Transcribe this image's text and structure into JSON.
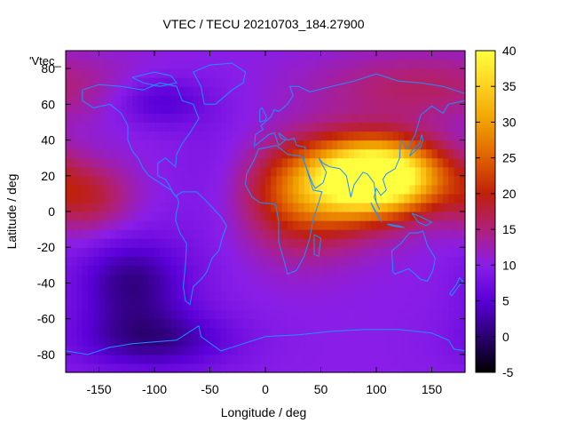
{
  "chart_data": {
    "type": "heatmap",
    "title": "VTEC / TECU 20210703_184.27900",
    "xlabel": "Longitude / deg",
    "ylabel": "Latitude / deg",
    "legend_key": "'Vtec_",
    "xlim": [
      -180,
      180
    ],
    "ylim": [
      -90,
      90
    ],
    "clim": [
      -5,
      40
    ],
    "x_ticks": [
      -150,
      -100,
      -50,
      0,
      50,
      100,
      150
    ],
    "y_ticks": [
      -80,
      -60,
      -40,
      -20,
      0,
      20,
      40,
      60,
      80
    ],
    "colorbar_ticks": [
      -5,
      0,
      5,
      10,
      15,
      20,
      25,
      30,
      35,
      40
    ],
    "colormap": [
      "#000000",
      "#2a0070",
      "#5a00d8",
      "#8a1ee8",
      "#b0207a",
      "#c0200a",
      "#e06000",
      "#f0a000",
      "#ffd020",
      "#ffff40"
    ],
    "coastline_color": "#1e90ff",
    "grid_step_deg": 5,
    "features": [
      {
        "lon": 105,
        "lat": 20,
        "value": 34,
        "sigma_lon": 38,
        "sigma_lat": 14
      },
      {
        "lon": 60,
        "lat": 15,
        "value": 12,
        "sigma_lon": 45,
        "sigma_lat": 18
      },
      {
        "lon": 30,
        "lat": 5,
        "value": 8,
        "sigma_lon": 40,
        "sigma_lat": 22
      },
      {
        "lon": -160,
        "lat": 8,
        "value": 8,
        "sigma_lon": 28,
        "sigma_lat": 14
      },
      {
        "lon": 140,
        "lat": 70,
        "value": 6,
        "sigma_lon": 70,
        "sigma_lat": 14
      },
      {
        "lon": -120,
        "lat": -40,
        "value": -9,
        "sigma_lon": 35,
        "sigma_lat": 18
      },
      {
        "lon": -100,
        "lat": -72,
        "value": -8,
        "sigma_lon": 50,
        "sigma_lat": 12
      },
      {
        "lon": -95,
        "lat": 62,
        "value": -6,
        "sigma_lon": 30,
        "sigma_lat": 10
      },
      {
        "lon": -40,
        "lat": 15,
        "value": -2,
        "sigma_lon": 30,
        "sigma_lat": 30
      }
    ],
    "base_value": 10
  }
}
